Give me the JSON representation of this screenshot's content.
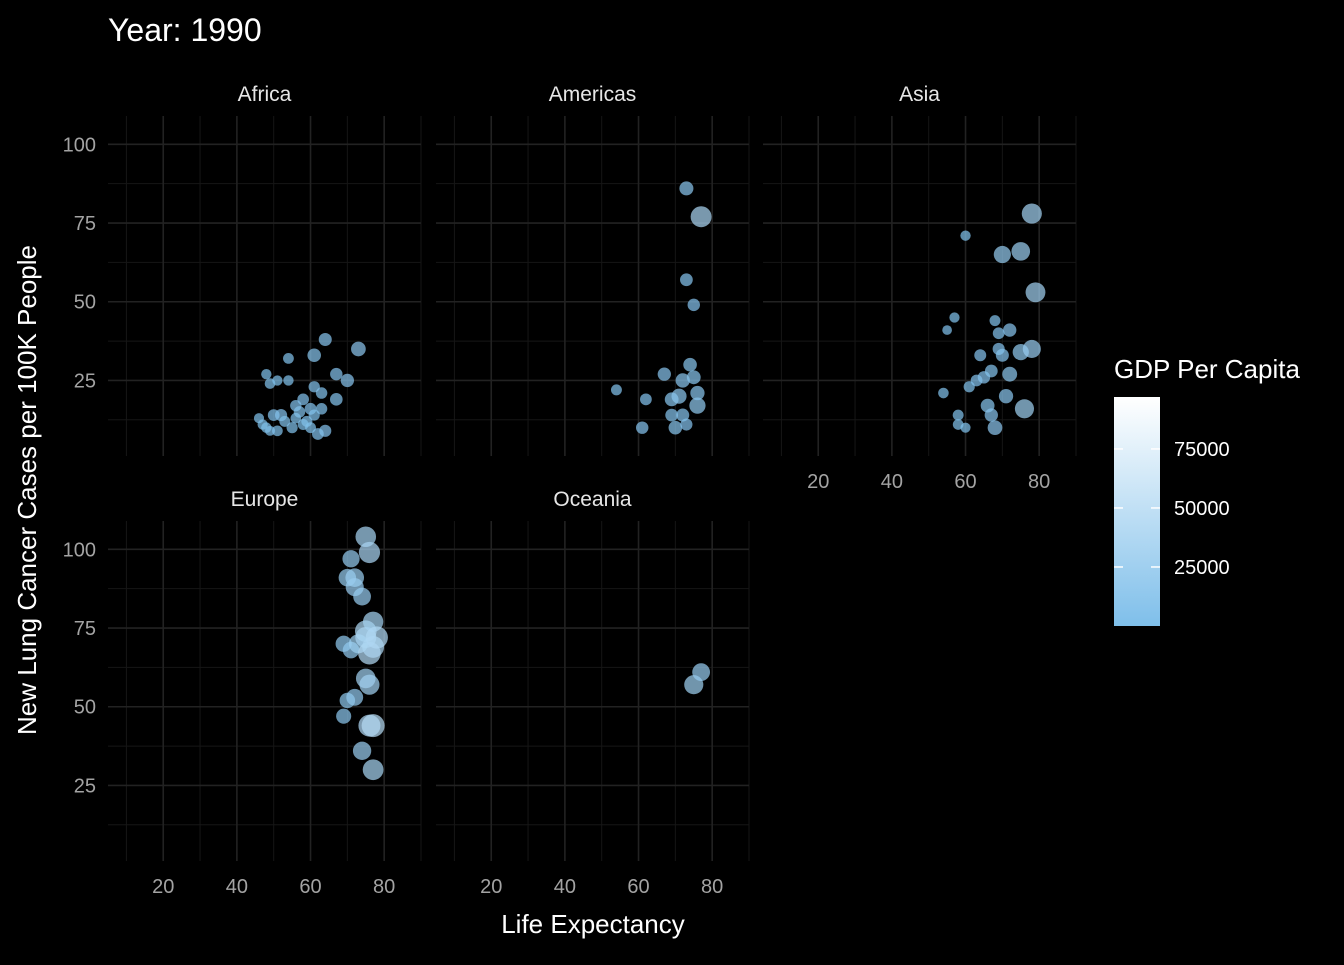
{
  "chart_data": {
    "type": "scatter",
    "title": "Year: 1990",
    "xlabel": "Life Expectancy",
    "ylabel": "New Lung Cancer Cases per 100K People",
    "xlim": [
      5,
      90
    ],
    "ylim": [
      1,
      109
    ],
    "x_ticks": [
      20,
      40,
      60,
      80
    ],
    "y_ticks": [
      25,
      50,
      75,
      100
    ],
    "grid": true,
    "legend": {
      "title": "GDP Per Capita",
      "position": "right",
      "ticks": [
        25000,
        50000,
        75000
      ],
      "tick_labels": [
        "25000",
        "50000",
        "75000"
      ],
      "range": [
        0,
        97000
      ],
      "color_low": "#7fbfea",
      "color_high": "#ffffff"
    },
    "colors": {
      "background": "#000000",
      "grid_major": "#222222",
      "grid_minor": "#161616",
      "axis_text": "#a3a3a3",
      "title_text": "#ffffff"
    },
    "facets": [
      {
        "name": "Africa",
        "points": [
          {
            "x": 46,
            "y": 13,
            "gdp": 800
          },
          {
            "x": 47,
            "y": 11,
            "gdp": 900
          },
          {
            "x": 48,
            "y": 27,
            "gdp": 1000
          },
          {
            "x": 48,
            "y": 10,
            "gdp": 1100
          },
          {
            "x": 49,
            "y": 24,
            "gdp": 1200
          },
          {
            "x": 49,
            "y": 9,
            "gdp": 700
          },
          {
            "x": 50,
            "y": 14,
            "gdp": 2500
          },
          {
            "x": 51,
            "y": 25,
            "gdp": 900
          },
          {
            "x": 51,
            "y": 9,
            "gdp": 1300
          },
          {
            "x": 52,
            "y": 14,
            "gdp": 3000
          },
          {
            "x": 53,
            "y": 12,
            "gdp": 1500
          },
          {
            "x": 54,
            "y": 32,
            "gdp": 1400
          },
          {
            "x": 54,
            "y": 25,
            "gdp": 1000
          },
          {
            "x": 55,
            "y": 10,
            "gdp": 1800
          },
          {
            "x": 56,
            "y": 13,
            "gdp": 1200
          },
          {
            "x": 56,
            "y": 17,
            "gdp": 2000
          },
          {
            "x": 57,
            "y": 15,
            "gdp": 2200
          },
          {
            "x": 58,
            "y": 11,
            "gdp": 1600
          },
          {
            "x": 58,
            "y": 19,
            "gdp": 2400
          },
          {
            "x": 59,
            "y": 12,
            "gdp": 1700
          },
          {
            "x": 60,
            "y": 16,
            "gdp": 2600
          },
          {
            "x": 60,
            "y": 10,
            "gdp": 1500
          },
          {
            "x": 61,
            "y": 33,
            "gdp": 5500
          },
          {
            "x": 61,
            "y": 23,
            "gdp": 2000
          },
          {
            "x": 61,
            "y": 14,
            "gdp": 1800
          },
          {
            "x": 62,
            "y": 8,
            "gdp": 2500
          },
          {
            "x": 63,
            "y": 21,
            "gdp": 2200
          },
          {
            "x": 63,
            "y": 16,
            "gdp": 2100
          },
          {
            "x": 64,
            "y": 38,
            "gdp": 4500
          },
          {
            "x": 64,
            "y": 9,
            "gdp": 3000
          },
          {
            "x": 67,
            "y": 27,
            "gdp": 3500
          },
          {
            "x": 67,
            "y": 19,
            "gdp": 3800
          },
          {
            "x": 70,
            "y": 25,
            "gdp": 5000
          },
          {
            "x": 73,
            "y": 35,
            "gdp": 8000
          }
        ]
      },
      {
        "name": "Americas",
        "points": [
          {
            "x": 54,
            "y": 22,
            "gdp": 1500
          },
          {
            "x": 61,
            "y": 10,
            "gdp": 3500
          },
          {
            "x": 62,
            "y": 19,
            "gdp": 2500
          },
          {
            "x": 67,
            "y": 27,
            "gdp": 5000
          },
          {
            "x": 69,
            "y": 14,
            "gdp": 4000
          },
          {
            "x": 69,
            "y": 19,
            "gdp": 6000
          },
          {
            "x": 70,
            "y": 10,
            "gdp": 5500
          },
          {
            "x": 71,
            "y": 20,
            "gdp": 9000
          },
          {
            "x": 72,
            "y": 14,
            "gdp": 4500
          },
          {
            "x": 72,
            "y": 25,
            "gdp": 7000
          },
          {
            "x": 73,
            "y": 57,
            "gdp": 4000
          },
          {
            "x": 73,
            "y": 86,
            "gdp": 6500
          },
          {
            "x": 73,
            "y": 11,
            "gdp": 3000
          },
          {
            "x": 74,
            "y": 30,
            "gdp": 5500
          },
          {
            "x": 75,
            "y": 49,
            "gdp": 3500
          },
          {
            "x": 75,
            "y": 26,
            "gdp": 6000
          },
          {
            "x": 76,
            "y": 17,
            "gdp": 12000
          },
          {
            "x": 76,
            "y": 21,
            "gdp": 7000
          },
          {
            "x": 77,
            "y": 77,
            "gdp": 30000
          }
        ]
      },
      {
        "name": "Asia",
        "points": [
          {
            "x": 54,
            "y": 21,
            "gdp": 1200
          },
          {
            "x": 55,
            "y": 41,
            "gdp": 500
          },
          {
            "x": 57,
            "y": 45,
            "gdp": 900
          },
          {
            "x": 58,
            "y": 14,
            "gdp": 1500
          },
          {
            "x": 58,
            "y": 11,
            "gdp": 1300
          },
          {
            "x": 60,
            "y": 10,
            "gdp": 800
          },
          {
            "x": 60,
            "y": 71,
            "gdp": 1000
          },
          {
            "x": 61,
            "y": 23,
            "gdp": 1800
          },
          {
            "x": 63,
            "y": 25,
            "gdp": 2500
          },
          {
            "x": 64,
            "y": 33,
            "gdp": 2800
          },
          {
            "x": 65,
            "y": 26,
            "gdp": 3500
          },
          {
            "x": 66,
            "y": 17,
            "gdp": 6000
          },
          {
            "x": 67,
            "y": 14,
            "gdp": 5000
          },
          {
            "x": 67,
            "y": 28,
            "gdp": 4000
          },
          {
            "x": 68,
            "y": 44,
            "gdp": 1500
          },
          {
            "x": 68,
            "y": 10,
            "gdp": 8000
          },
          {
            "x": 69,
            "y": 40,
            "gdp": 2500
          },
          {
            "x": 69,
            "y": 35,
            "gdp": 3000
          },
          {
            "x": 70,
            "y": 65,
            "gdp": 15000
          },
          {
            "x": 70,
            "y": 33,
            "gdp": 4500
          },
          {
            "x": 71,
            "y": 20,
            "gdp": 7000
          },
          {
            "x": 72,
            "y": 41,
            "gdp": 5000
          },
          {
            "x": 72,
            "y": 27,
            "gdp": 8500
          },
          {
            "x": 75,
            "y": 66,
            "gdp": 20000
          },
          {
            "x": 75,
            "y": 34,
            "gdp": 12000
          },
          {
            "x": 76,
            "y": 16,
            "gdp": 22000
          },
          {
            "x": 78,
            "y": 78,
            "gdp": 26000
          },
          {
            "x": 78,
            "y": 35,
            "gdp": 18000
          },
          {
            "x": 79,
            "y": 53,
            "gdp": 25000
          }
        ]
      },
      {
        "name": "Europe",
        "points": [
          {
            "x": 69,
            "y": 70,
            "gdp": 12000
          },
          {
            "x": 69,
            "y": 47,
            "gdp": 9000
          },
          {
            "x": 70,
            "y": 52,
            "gdp": 10000
          },
          {
            "x": 70,
            "y": 91,
            "gdp": 16000
          },
          {
            "x": 71,
            "y": 68,
            "gdp": 13000
          },
          {
            "x": 71,
            "y": 97,
            "gdp": 15000
          },
          {
            "x": 72,
            "y": 88,
            "gdp": 18000
          },
          {
            "x": 72,
            "y": 53,
            "gdp": 14000
          },
          {
            "x": 72,
            "y": 91,
            "gdp": 20000
          },
          {
            "x": 73,
            "y": 70,
            "gdp": 22000
          },
          {
            "x": 74,
            "y": 85,
            "gdp": 17000
          },
          {
            "x": 74,
            "y": 36,
            "gdp": 19000
          },
          {
            "x": 75,
            "y": 72,
            "gdp": 30000
          },
          {
            "x": 75,
            "y": 59,
            "gdp": 24000
          },
          {
            "x": 75,
            "y": 104,
            "gdp": 28000
          },
          {
            "x": 75,
            "y": 74,
            "gdp": 33000
          },
          {
            "x": 76,
            "y": 67,
            "gdp": 38000
          },
          {
            "x": 76,
            "y": 57,
            "gdp": 26000
          },
          {
            "x": 76,
            "y": 99,
            "gdp": 31000
          },
          {
            "x": 76,
            "y": 44,
            "gdp": 35000
          },
          {
            "x": 77,
            "y": 77,
            "gdp": 27000
          },
          {
            "x": 77,
            "y": 69,
            "gdp": 34000
          },
          {
            "x": 77,
            "y": 30,
            "gdp": 29000
          },
          {
            "x": 77,
            "y": 44,
            "gdp": 40000
          },
          {
            "x": 78,
            "y": 72,
            "gdp": 36000
          }
        ]
      },
      {
        "name": "Oceania",
        "points": [
          {
            "x": 75,
            "y": 57,
            "gdp": 22000
          },
          {
            "x": 77,
            "y": 61,
            "gdp": 17000
          }
        ]
      }
    ]
  }
}
